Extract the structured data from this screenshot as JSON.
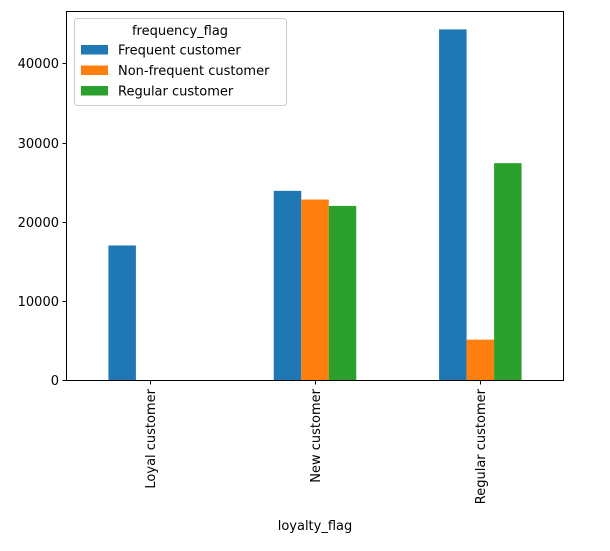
{
  "chart_data": {
    "type": "bar",
    "title": "",
    "xlabel": "loyalty_flag",
    "ylabel": "",
    "categories": [
      "Loyal customer",
      "New customer",
      "Regular customer"
    ],
    "series": [
      {
        "name": "Frequent customer",
        "color": "#1f77b4",
        "values": [
          17000,
          23900,
          44300
        ]
      },
      {
        "name": "Non-frequent customer",
        "color": "#ff7f0e",
        "values": [
          0,
          22800,
          5100
        ]
      },
      {
        "name": "Regular customer",
        "color": "#2ca02c",
        "values": [
          0,
          22000,
          27400
        ]
      }
    ],
    "ylim": [
      0,
      46500
    ],
    "yticks": [
      0,
      10000,
      20000,
      30000,
      40000
    ],
    "ytick_labels": [
      "0",
      "10000",
      "20000",
      "30000",
      "40000"
    ],
    "legend": {
      "title": "frequency_flag",
      "placement": "top-left"
    },
    "grid": false
  }
}
